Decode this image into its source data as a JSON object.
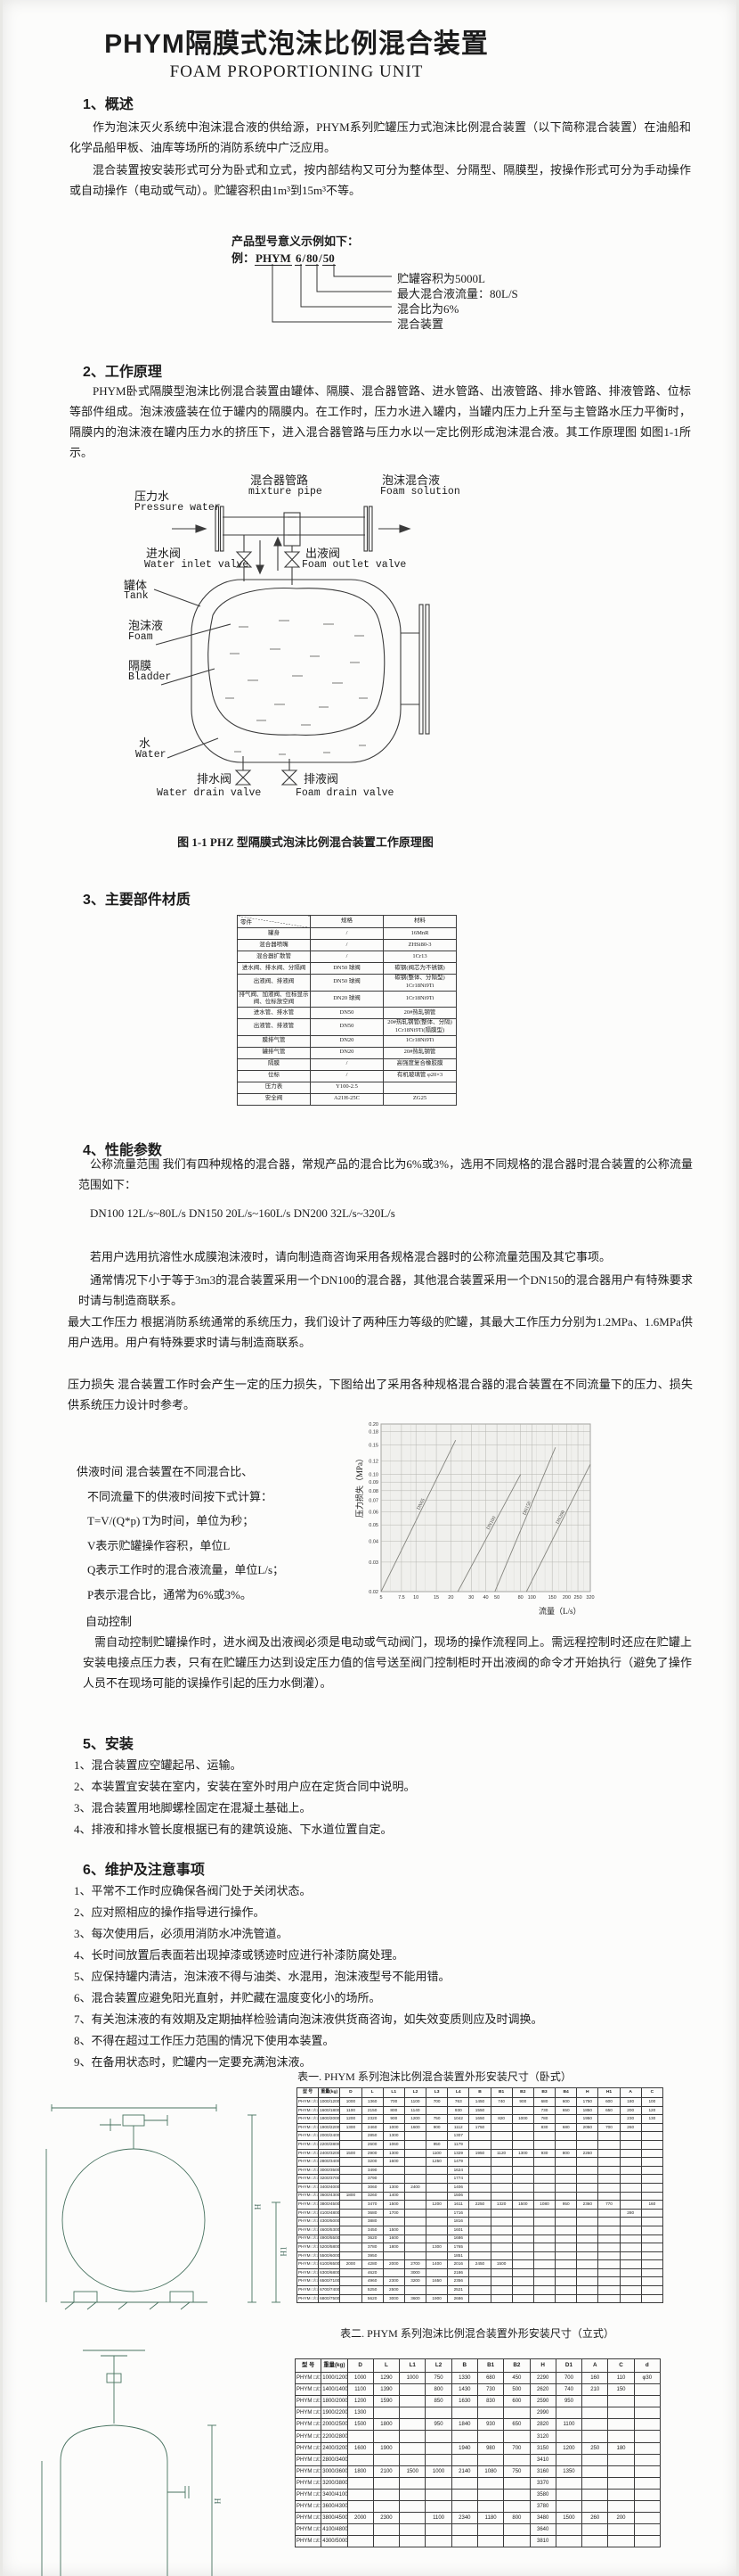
{
  "page": {
    "title": "PHYM隔膜式泡沫比例混合装置",
    "subtitle": "FOAM PROPORTIONING UNIT"
  },
  "section1": {
    "heading": "1、概述",
    "para1": "作为泡沫灭火系统中泡沫混合液的供给源，PHYM系列贮罐压力式泡沫比例混合装置（以下简称混合装置）在油船和化学品船甲板、油库等场所的消防系统中广泛应用。",
    "para2": "混合装置按安装形式可分为卧式和立式，按内部结构又可分为整体型、分隔型、隔膜型，按操作形式可分为手动操作或自动操作（电动或气动）。贮罐容积由1m³到15m³不等。"
  },
  "model_figure": {
    "intro": "产品型号意义示例如下：",
    "example_prefix": "例：",
    "word": "PHYM",
    "nums": [
      "6",
      "80",
      "50"
    ],
    "sep": "/",
    "labels": [
      "贮罐容积为5000L",
      "最大混合液流量：80L/S",
      "混合比为6%",
      "混合装置"
    ]
  },
  "section2": {
    "heading": "2、工作原理",
    "para": "PHYM卧式隔膜型泡沫比例混合装置由罐体、隔膜、混合器管路、进水管路、出液管路、排水管路、排液管路、位标等部件组成。泡沫液盛装在位于罐内的隔膜内。在工作时，压力水进入罐内，当罐内压力上升至与主管路水压力平衡时，隔膜内的泡沫液在罐内压力水的挤压下，进入混合器管路与压力水以一定比例形成泡沫混合液。其工作原理图 如图1-1所示。",
    "figure_caption": "图 1-1 PHZ 型隔膜式泡沫比例混合装置工作原理图",
    "labels": {
      "pressure_water_cn": "压力水",
      "pressure_water_en": "Pressure water",
      "mixture_pipe_cn": "混合器管路",
      "mixture_pipe_en": "mixture pipe",
      "foam_solution_cn": "泡沫混合液",
      "foam_solution_en": "Foam solution",
      "water_inlet_cn": "进水阀",
      "water_inlet_en": "Water inlet valve",
      "foam_outlet_cn": "出液阀",
      "foam_outlet_en": "Foam outlet valve",
      "tank_cn": "罐体",
      "tank_en": "Tank",
      "foam_cn": "泡沫液",
      "foam_en": "Foam",
      "bladder_cn": "隔膜",
      "bladder_en": "Bladder",
      "water_cn": "水",
      "water_en": "Water",
      "water_drain_cn": "排水阀",
      "water_drain_en": "Water drain valve",
      "foam_drain_cn": "排液阀",
      "foam_drain_en": "Foam drain valve"
    }
  },
  "section3": {
    "heading": "3、主要部件材质",
    "table": {
      "headers": [
        "零件",
        "规格",
        "材料"
      ],
      "rows": [
        [
          "罐身",
          "/",
          "16MnR"
        ],
        [
          "混合器喷嘴",
          "/",
          "ZHSi80-3"
        ],
        [
          "混合器扩散管",
          "/",
          "1Cr13"
        ],
        [
          "进水阀、排水阀、分隔阀",
          "DN50 球阀",
          "碳钢(阀芯为不锈钢)"
        ],
        [
          "出液阀、排液阀",
          "DN50 球阀",
          "碳钢(整体、分隔型) 1Cr18Ni9Ti"
        ],
        [
          "排气阀、加液阀、位标显示阀、位标放空阀",
          "DN20 球阀",
          "1Cr18Ni9Ti"
        ],
        [
          "进水管、排水管",
          "DN50",
          "20#热轧钢管"
        ],
        [
          "出液管、排液管",
          "DN50",
          "20#热轧钢管(整体、分隔) 1Cr18Ni9Ti(隔膜型)"
        ],
        [
          "膜排气管",
          "DN20",
          "1Cr18Ni9Ti"
        ],
        [
          "罐排气管",
          "DN20",
          "20#热轧钢管"
        ],
        [
          "隔膜",
          "/",
          "高强度复合橡胶膜"
        ],
        [
          "位标",
          "/",
          "有机玻璃管 φ20×3"
        ],
        [
          "压力表",
          "Y100-2.5",
          ""
        ],
        [
          "安全阀",
          "A21H-25C",
          "ZG25"
        ]
      ]
    }
  },
  "section4": {
    "heading": "4、性能参数",
    "para_flow": "公称流量范围  我们有四种规格的混合器，常规产品的混合比为6%或3%，选用不同规格的混合器时混合装置的公称流量范围如下：",
    "flow_line": "DN100  12L/s~80L/s   DN150  20L/s~160L/s   DN200  32L/s~320L/s",
    "para_alcohol": "若用户选用抗溶性水成膜泡沫液时，请向制造商咨询采用各规格混合器时的公称流量范围及其它事项。",
    "para_usual": "通常情况下小于等于3m3的混合装置采用一个DN100的混合器，其他混合装置采用一个DN150的混合器用户有特殊要求时请与制造商联系。",
    "para_pressure": "最大工作压力  根据消防系统通常的系统压力，我们设计了两种压力等级的贮罐，其最大工作压力分别为1.2MPa、1.6MPa供用户选用。用户有特殊要求时请与制造商联系。",
    "para_loss": "压力损失  混合装置工作时会产生一定的压力损失，下图给出了采用各种规格混合器的混合装置在不同流量下的压力、损失供系统压力设计时参考。",
    "supply_time": [
      "供液时间  混合装置在不同混合比、",
      "不同流量下的供液时间按下式计算：",
      "T=V/(Q*p)    T为时间，单位为秒；",
      "V表示贮罐操作容积，单位L",
      "Q表示工作时的混合液流量，单位L/s；",
      "P表示混合比，通常为6%或3%。"
    ],
    "auto_heading": "自动控制",
    "auto_para": "需自动控制贮罐操作时，进水阀及出液阀必须是电动或气动阀门，现场的操作流程同上。需远程控制时还应在贮罐上安装电接点压力表，只有在贮罐压力达到设定压力值的信号送至阀门控制柜时开出液阀的命令才开始执行（避免了操作人员不在现场可能的误操作引起的压力水倒灌）。"
  },
  "chart_data": {
    "type": "line",
    "title": "",
    "xlabel": "流量（L/s）",
    "ylabel": "压力损失（MPa）",
    "x_scale": "log",
    "y_scale": "log",
    "xlim": [
      5,
      320
    ],
    "ylim": [
      0.02,
      0.2
    ],
    "x_ticks": [
      "5",
      "7.5",
      "10",
      "15",
      "20",
      "30",
      "40",
      "50",
      "80",
      "100",
      "150",
      "200",
      "250",
      "320"
    ],
    "y_ticks": [
      "0.02",
      "0.03",
      "0.04",
      "0.05",
      "0.06",
      "0.07",
      "0.08",
      "0.09",
      "0.10",
      "0.12",
      "0.15",
      "0.18",
      "0.20"
    ],
    "x_minor": [
      6,
      9,
      12,
      25,
      35,
      60,
      70,
      90,
      110,
      130,
      170,
      220,
      280
    ],
    "grid": true,
    "legend_position": "on-line",
    "series": [
      {
        "name": "DN65",
        "points": [
          [
            5,
            0.02
          ],
          [
            22,
            0.16
          ]
        ]
      },
      {
        "name": "DN100",
        "points": [
          [
            23,
            0.02
          ],
          [
            80,
            0.1
          ]
        ]
      },
      {
        "name": "DN150",
        "points": [
          [
            48,
            0.02
          ],
          [
            160,
            0.145
          ]
        ]
      },
      {
        "name": "DN200",
        "points": [
          [
            90,
            0.02
          ],
          [
            320,
            0.115
          ]
        ]
      }
    ]
  },
  "section5": {
    "heading": "5、安装",
    "items": [
      "1、混合装置应空罐起吊、运输。",
      "2、本装置宜安装在室内，安装在室外时用户应在定货合同中说明。",
      "3、混合装置用地脚螺栓固定在混凝土基础上。",
      "4、排液和排水管长度根据已有的建筑设施、下水道位置自定。"
    ]
  },
  "section6": {
    "heading": "6、维护及注意事项",
    "items": [
      "1、平常不工作时应确保各阀门处于关闭状态。",
      "2、应对照相应的操作指导进行操作。",
      "3、每次使用后，必须用消防水冲洗管道。",
      "4、长时间放置后表面若出现掉漆或锈迹时应进行补漆防腐处理。",
      "5、应保持罐内清洁，泡沫液不得与油类、水混用，泡沫液型号不能用错。",
      "6、混合装置应避免阳光直射，并贮藏在温度变化小的场所。",
      "7、有关泡沫液的有效期及定期抽样检验请向泡沫液供货商咨询，如失效变质则应及时调换。",
      "8、不得在超过工作压力范围的情况下使用本装置。",
      "9、在备用状态时，贮罐内一定要充满泡沫液。"
    ]
  },
  "table1": {
    "title": "表一. PHYM 系列泡沫比例混合装置外形安装尺寸（卧式）",
    "headers": [
      "型  号",
      "重量(kg)",
      "D",
      "L",
      "L1",
      "L2",
      "L3",
      "L4",
      "B",
      "B1",
      "B2",
      "B3",
      "B4",
      "H",
      "H1",
      "A",
      "C"
    ],
    "rows": [
      [
        "PHYM □/□/10",
        "1000/1200",
        "1000",
        "1360",
        "700",
        "1100",
        "700",
        "763",
        "1450",
        "740",
        "900",
        "680",
        "600",
        "1750",
        "600",
        "180",
        "100"
      ],
      [
        "PHYM □/□/15",
        "1600/1800",
        "1100",
        "2150",
        "800",
        "1140",
        "",
        "930",
        "1550",
        "",
        "",
        "730",
        "650",
        "1850",
        "650",
        "200",
        "120"
      ],
      [
        "PHYM □/□/20",
        "1800/2000",
        "1200",
        "2320",
        "900",
        "1200",
        "750",
        "1042",
        "1650",
        "820",
        "1000",
        "780",
        "",
        "1950",
        "",
        "230",
        "130"
      ],
      [
        "PHYM □/□/25",
        "1900/2200",
        "1300",
        "2460",
        "1000",
        "1600",
        "900",
        "1112",
        "1750",
        "",
        "",
        "830",
        "680",
        "2050",
        "700",
        "260",
        ""
      ],
      [
        "PHYM □/□/30",
        "2000/2400",
        "",
        "2850",
        "1300",
        "",
        "",
        "1307",
        "",
        "",
        "",
        "",
        "",
        "",
        "",
        "",
        ""
      ],
      [
        "PHYM □/□/35",
        "2200/2800",
        "",
        "2600",
        "1060",
        "",
        "950",
        "1179",
        "",
        "",
        "",
        "",
        "",
        "",
        "",
        "",
        ""
      ],
      [
        "PHYM □/□/40",
        "2400/3200",
        "1500",
        "2900",
        "1300",
        "",
        "1100",
        "1329",
        "1950",
        "1120",
        "1300",
        "930",
        "800",
        "2260",
        "",
        "",
        ""
      ],
      [
        "PHYM □/□/45",
        "2800/3400",
        "",
        "3200",
        "1600",
        "",
        "1250",
        "1479",
        "",
        "",
        "",
        "",
        "",
        "",
        "",
        "",
        ""
      ],
      [
        "PHYM □/□/50",
        "3000/3500",
        "",
        "3490",
        "",
        "",
        "",
        "1624",
        "",
        "",
        "",
        "",
        "",
        "",
        "",
        "",
        ""
      ],
      [
        "PHYM □/□/55",
        "3200/3700",
        "",
        "3790",
        "",
        "",
        "",
        "1774",
        "",
        "",
        "",
        "",
        "",
        "",
        "",
        "",
        ""
      ],
      [
        "PHYM □/□/60",
        "3400/4000",
        "",
        "3060",
        "1300",
        "2400",
        "",
        "1406",
        "",
        "",
        "",
        "",
        "",
        "",
        "",
        "",
        ""
      ],
      [
        "PHYM □/□/65",
        "3600/4300",
        "1800",
        "3260",
        "1400",
        "",
        "",
        "1506",
        "",
        "",
        "",
        "",
        "",
        "",
        "",
        "",
        ""
      ],
      [
        "PHYM □/□/70",
        "3800/4500",
        "",
        "3470",
        "1500",
        "",
        "1200",
        "1611",
        "2250",
        "1320",
        "1500",
        "1080",
        "950",
        "2360",
        "770",
        "",
        "160"
      ],
      [
        "PHYM □/□/75",
        "4100/4800",
        "",
        "3680",
        "1700",
        "",
        "",
        "1716",
        "",
        "",
        "",
        "",
        "",
        "",
        "",
        "280",
        ""
      ],
      [
        "PHYM □/□/80",
        "4300/5000",
        "",
        "3880",
        "",
        "",
        "",
        "1816",
        "",
        "",
        "",
        "",
        "",
        "",
        "",
        "",
        ""
      ],
      [
        "PHYM □/□/85",
        "4600/5300",
        "",
        "3450",
        "1500",
        "",
        "",
        "1601",
        "",
        "",
        "",
        "",
        "",
        "",
        "",
        "",
        ""
      ],
      [
        "PHYM □/□/90",
        "4900/5500",
        "",
        "3620",
        "1600",
        "",
        "",
        "1686",
        "",
        "",
        "",
        "",
        "",
        "",
        "",
        "",
        ""
      ],
      [
        "PHYM □/□/95",
        "5200/5800",
        "",
        "3780",
        "1800",
        "",
        "1300",
        "1765",
        "",
        "",
        "",
        "",
        "",
        "",
        "",
        "",
        ""
      ],
      [
        "PHYM □/□/100",
        "5500/6000",
        "",
        "3950",
        "",
        "",
        "",
        "1851",
        "",
        "",
        "",
        "",
        "",
        "",
        "",
        "",
        ""
      ],
      [
        "PHYM □/□/110",
        "6100/6500",
        "2000",
        "4280",
        "2000",
        "2700",
        "1400",
        "2016",
        "2450",
        "1500",
        "",
        "",
        "",
        "",
        "",
        "",
        ""
      ],
      [
        "PHYM □/□/120",
        "6300/6800",
        "",
        "4620",
        "",
        "3000",
        "",
        "2186",
        "",
        "",
        "",
        "",
        "",
        "",
        "",
        "",
        ""
      ],
      [
        "PHYM □/□/130",
        "6500/7100",
        "",
        "4960",
        "2300",
        "3200",
        "1650",
        "2356",
        "",
        "",
        "",
        "",
        "",
        "",
        "",
        "",
        ""
      ],
      [
        "PHYM □/□/140",
        "6700/7400",
        "",
        "5250",
        "2500",
        "",
        "",
        "2521",
        "",
        "",
        "",
        "",
        "",
        "",
        "",
        "",
        ""
      ],
      [
        "PHYM □/□/150",
        "6800/7500",
        "",
        "5620",
        "3000",
        "3600",
        "1900",
        "2686",
        "",
        "",
        "",
        "",
        "",
        "",
        "",
        "",
        ""
      ]
    ]
  },
  "table2": {
    "title": "表二. PHYM 系列泡沫比例混合装置外形安装尺寸（立式）",
    "headers": [
      "型  号",
      "重量(kg)",
      "D",
      "L",
      "L1",
      "L2",
      "B",
      "B1",
      "B2",
      "H",
      "D1",
      "A",
      "C",
      "d"
    ],
    "rows": [
      [
        "PHYM □/□/10",
        "1000/1200",
        "1000",
        "1290",
        "1000",
        "750",
        "1330",
        "680",
        "450",
        "2290",
        "700",
        "160",
        "110",
        "φ30"
      ],
      [
        "PHYM □/□/15",
        "1400/1400",
        "1100",
        "1390",
        "",
        "800",
        "1430",
        "730",
        "500",
        "2620",
        "740",
        "210",
        "150",
        ""
      ],
      [
        "PHYM □/□/20",
        "1800/2000",
        "1200",
        "1590",
        "",
        "850",
        "1630",
        "830",
        "600",
        "2590",
        "950",
        "",
        "",
        ""
      ],
      [
        "PHYM □/□/25",
        "1900/2200",
        "1300",
        "",
        "",
        "",
        "",
        "",
        "",
        "2990",
        "",
        "",
        "",
        ""
      ],
      [
        "PHYM □/□/30",
        "2000/2500",
        "1500",
        "1800",
        "",
        "950",
        "1840",
        "930",
        "650",
        "2820",
        "1100",
        "",
        "",
        ""
      ],
      [
        "PHYM □/□/35",
        "2200/2800",
        "",
        "",
        "",
        "",
        "",
        "",
        "",
        "3120",
        "",
        "",
        "",
        ""
      ],
      [
        "PHYM □/□/40",
        "2400/3200",
        "1600",
        "1900",
        "",
        "",
        "1940",
        "980",
        "700",
        "3150",
        "1200",
        "250",
        "180",
        ""
      ],
      [
        "PHYM □/□/45",
        "2800/3400",
        "",
        "",
        "",
        "",
        "",
        "",
        "",
        "3410",
        "",
        "",
        "",
        ""
      ],
      [
        "PHYM □/□/50",
        "3000/3600",
        "1800",
        "2100",
        "1500",
        "1000",
        "2140",
        "1080",
        "750",
        "3160",
        "1350",
        "",
        "",
        ""
      ],
      [
        "PHYM □/□/55",
        "3200/3800",
        "",
        "",
        "",
        "",
        "",
        "",
        "",
        "3370",
        "",
        "",
        "",
        ""
      ],
      [
        "PHYM □/□/60",
        "3400/4100",
        "",
        "",
        "",
        "",
        "",
        "",
        "",
        "3580",
        "",
        "",
        "",
        ""
      ],
      [
        "PHYM □/□/65",
        "3600/4300",
        "",
        "",
        "",
        "",
        "",
        "",
        "",
        "3780",
        "",
        "",
        "",
        ""
      ],
      [
        "PHYM □/□/70",
        "3800/4500",
        "2000",
        "2300",
        "",
        "1100",
        "2340",
        "1180",
        "800",
        "3480",
        "1500",
        "260",
        "200",
        ""
      ],
      [
        "PHYM □/□/75",
        "4100/4800",
        "",
        "",
        "",
        "",
        "",
        "",
        "",
        "3640",
        "",
        "",
        "",
        ""
      ],
      [
        "PHYM □/□/80",
        "4300/5000",
        "",
        "",
        "",
        "",
        "",
        "",
        "",
        "3810",
        "",
        "",
        "",
        ""
      ]
    ]
  },
  "drawings": {
    "horizontal_dims": [
      "H",
      "H1"
    ],
    "vertical_dims": [
      "H"
    ]
  }
}
